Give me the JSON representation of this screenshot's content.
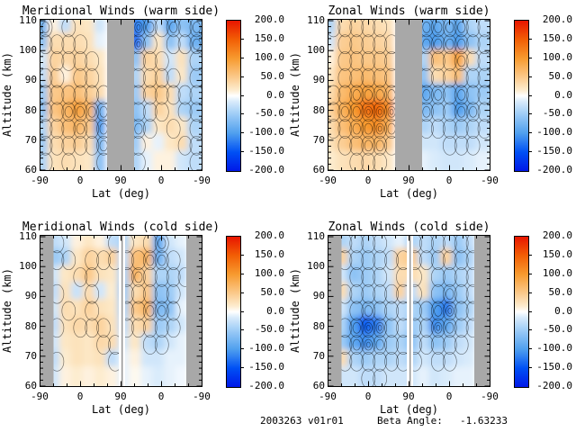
{
  "figure": {
    "footer": {
      "date_version": "2003263 v01r01",
      "beta_label": "Beta Angle:",
      "beta_value": "-1.63233"
    }
  },
  "colors": {
    "mask_gray": "#a8a8a8",
    "frame": "#000000",
    "background": "#ffffff"
  },
  "colorbar": {
    "tick_labels": [
      "200.0",
      "150.0",
      "100.0",
      "50.0",
      "0.0",
      "-50.0",
      "-100.0",
      "-150.0",
      "-200.0"
    ],
    "value_range": [
      -200,
      200
    ],
    "gradient_stops": [
      {
        "value": -200,
        "color": "#0018e8"
      },
      {
        "value": -150,
        "color": "#0050f4"
      },
      {
        "value": -100,
        "color": "#4f9fee"
      },
      {
        "value": -50,
        "color": "#9ccbf6"
      },
      {
        "value": -15,
        "color": "#d9ebfb"
      },
      {
        "value": 0,
        "color": "#ffffff"
      },
      {
        "value": 15,
        "color": "#fdeccf"
      },
      {
        "value": 50,
        "color": "#fbc98a"
      },
      {
        "value": 100,
        "color": "#f79a2e"
      },
      {
        "value": 150,
        "color": "#f25e05"
      },
      {
        "value": 200,
        "color": "#e81500"
      }
    ]
  },
  "chart_data": [
    {
      "type": "heatmap",
      "title": "Meridional Winds (warm side)",
      "xlabel": "Lat (deg)",
      "ylabel": "Altitude (km)",
      "x_tick_labels": [
        "-90",
        "0",
        "90",
        "0",
        "-90"
      ],
      "x_axis_note": "latitude along orbit track: ascending -90 to 90, then descending 90 to -90",
      "y_ticks": [
        60,
        70,
        80,
        90,
        100,
        110
      ],
      "ylim": [
        60,
        110
      ],
      "value_range": [
        -200,
        200
      ],
      "mask": "center",
      "row_altitudes_km": [
        107,
        102,
        96,
        91,
        85,
        79,
        74,
        68,
        63
      ],
      "grid": [
        [
          -80,
          10,
          -30,
          25,
          20,
          -20,
          0,
          0,
          -120,
          -100,
          -30,
          -90,
          -60,
          -70
        ],
        [
          -60,
          30,
          30,
          30,
          25,
          -10,
          0,
          0,
          -130,
          -60,
          20,
          -60,
          -30,
          -80
        ],
        [
          -20,
          40,
          35,
          40,
          30,
          20,
          0,
          0,
          -60,
          40,
          30,
          -20,
          25,
          -40
        ],
        [
          -30,
          45,
          10,
          50,
          40,
          25,
          0,
          0,
          -40,
          30,
          40,
          -30,
          20,
          -50
        ],
        [
          -50,
          50,
          55,
          60,
          45,
          30,
          0,
          0,
          -50,
          40,
          50,
          30,
          -30,
          -40
        ],
        [
          -60,
          55,
          70,
          90,
          70,
          -80,
          0,
          0,
          -60,
          -30,
          40,
          25,
          -40,
          -50
        ],
        [
          -40,
          40,
          60,
          70,
          50,
          -100,
          0,
          0,
          -70,
          -40,
          20,
          30,
          20,
          -40
        ],
        [
          -50,
          30,
          40,
          45,
          30,
          -70,
          0,
          0,
          -50,
          10,
          -10,
          20,
          30,
          -30
        ],
        [
          -40,
          25,
          30,
          25,
          20,
          -60,
          0,
          0,
          -40,
          -10,
          10,
          10,
          -20,
          -30
        ]
      ]
    },
    {
      "type": "heatmap",
      "title": "Zonal Winds (warm side)",
      "xlabel": "Lat (deg)",
      "ylabel": "Altitude (km)",
      "x_tick_labels": [
        "-90",
        "0",
        "90",
        "0",
        "-90"
      ],
      "x_axis_note": "latitude along orbit track: ascending -90 to 90, then descending 90 to -90",
      "y_ticks": [
        60,
        70,
        80,
        90,
        100,
        110
      ],
      "ylim": [
        60,
        110
      ],
      "value_range": [
        -200,
        200
      ],
      "mask": "center",
      "row_altitudes_km": [
        107,
        102,
        96,
        91,
        85,
        79,
        74,
        68,
        63
      ],
      "grid": [
        [
          -40,
          30,
          40,
          35,
          30,
          25,
          0,
          0,
          -80,
          -90,
          -70,
          -90,
          -40,
          -30
        ],
        [
          -20,
          45,
          50,
          45,
          40,
          35,
          0,
          0,
          -90,
          -100,
          -80,
          -100,
          -60,
          -40
        ],
        [
          10,
          50,
          55,
          50,
          50,
          45,
          0,
          0,
          -40,
          60,
          50,
          90,
          30,
          -30
        ],
        [
          20,
          55,
          60,
          65,
          60,
          55,
          0,
          0,
          -60,
          30,
          40,
          60,
          -40,
          -40
        ],
        [
          30,
          65,
          80,
          90,
          85,
          70,
          0,
          0,
          -90,
          -70,
          -60,
          -90,
          -60,
          -50
        ],
        [
          40,
          75,
          100,
          130,
          140,
          110,
          0,
          0,
          -70,
          -60,
          -50,
          -100,
          -70,
          -40
        ],
        [
          30,
          60,
          80,
          100,
          110,
          80,
          0,
          0,
          -40,
          -30,
          -40,
          -50,
          -40,
          -30
        ],
        [
          25,
          45,
          60,
          70,
          70,
          50,
          0,
          0,
          -20,
          -20,
          -30,
          -30,
          -30,
          -20
        ],
        [
          15,
          25,
          30,
          35,
          30,
          20,
          0,
          0,
          -10,
          -15,
          -20,
          -20,
          -15,
          -10
        ]
      ]
    },
    {
      "type": "heatmap",
      "title": "Meridional Winds (cold side)",
      "xlabel": "Lat (deg)",
      "ylabel": "Altitude (km)",
      "x_tick_labels": [
        "-90",
        "0",
        "90",
        "0",
        "-90"
      ],
      "x_axis_note": "latitude along orbit track: ascending -90 to 90, then descending 90 to -90",
      "y_ticks": [
        60,
        70,
        80,
        90,
        100,
        110
      ],
      "ylim": [
        60,
        110
      ],
      "value_range": [
        -200,
        200
      ],
      "mask": "edges",
      "row_altitudes_km": [
        107,
        102,
        96,
        91,
        85,
        79,
        74,
        68,
        63
      ],
      "grid": [
        [
          0,
          -30,
          -20,
          10,
          20,
          10,
          -30,
          -40,
          20,
          30,
          -90,
          -20,
          -10,
          0
        ],
        [
          0,
          -50,
          -40,
          20,
          40,
          30,
          40,
          -30,
          60,
          70,
          -80,
          -30,
          -20,
          0
        ],
        [
          0,
          -20,
          20,
          30,
          50,
          25,
          20,
          -40,
          70,
          40,
          -40,
          -40,
          -30,
          0
        ],
        [
          0,
          -30,
          25,
          -25,
          30,
          -20,
          15,
          -50,
          30,
          50,
          -60,
          -50,
          -20,
          0
        ],
        [
          0,
          -20,
          30,
          25,
          40,
          25,
          20,
          -40,
          50,
          70,
          -70,
          -60,
          -10,
          0
        ],
        [
          0,
          -30,
          25,
          35,
          30,
          40,
          25,
          -30,
          30,
          40,
          -50,
          -40,
          -20,
          0
        ],
        [
          0,
          -20,
          20,
          25,
          20,
          35,
          30,
          -20,
          20,
          -30,
          -40,
          -20,
          -10,
          0
        ],
        [
          0,
          -30,
          15,
          25,
          20,
          25,
          -30,
          -10,
          10,
          -20,
          -20,
          -10,
          -10,
          0
        ],
        [
          0,
          -20,
          10,
          15,
          10,
          15,
          10,
          -10,
          5,
          -10,
          -15,
          -10,
          -5,
          0
        ]
      ]
    },
    {
      "type": "heatmap",
      "title": "Zonal Winds (cold side)",
      "xlabel": "Lat (deg)",
      "ylabel": "Altitude (km)",
      "x_tick_labels": [
        "-90",
        "0",
        "90",
        "0",
        "-90"
      ],
      "x_axis_note": "latitude along orbit track: ascending -90 to 90, then descending 90 to -90",
      "y_ticks": [
        60,
        70,
        80,
        90,
        100,
        110
      ],
      "ylim": [
        60,
        110
      ],
      "value_range": [
        -200,
        200
      ],
      "mask": "edges",
      "row_altitudes_km": [
        107,
        102,
        96,
        91,
        85,
        79,
        74,
        68,
        63
      ],
      "grid": [
        [
          0,
          -40,
          -30,
          -40,
          -30,
          -20,
          -10,
          -40,
          -30,
          -40,
          -30,
          -50,
          -30,
          0
        ],
        [
          0,
          40,
          -40,
          -50,
          -40,
          -30,
          40,
          50,
          -30,
          -50,
          40,
          -60,
          -40,
          0
        ],
        [
          0,
          -20,
          -60,
          -50,
          -40,
          -20,
          30,
          30,
          20,
          -40,
          -50,
          -40,
          -30,
          0
        ],
        [
          0,
          30,
          -40,
          -50,
          -40,
          -30,
          40,
          -30,
          25,
          -60,
          -70,
          -50,
          -30,
          0
        ],
        [
          0,
          -20,
          -60,
          -70,
          -60,
          -40,
          -30,
          -40,
          -50,
          -100,
          -120,
          -60,
          -40,
          0
        ],
        [
          0,
          -40,
          -100,
          -140,
          -120,
          -60,
          -30,
          -50,
          -40,
          -110,
          -90,
          -50,
          -30,
          0
        ],
        [
          0,
          -50,
          -90,
          -110,
          -90,
          -50,
          -40,
          -60,
          -30,
          -60,
          -50,
          -30,
          -20,
          0
        ],
        [
          0,
          30,
          -40,
          -50,
          -40,
          -40,
          -30,
          -40,
          -20,
          -30,
          -30,
          -20,
          -15,
          0
        ],
        [
          0,
          -20,
          -20,
          -30,
          -30,
          -20,
          -20,
          -20,
          -10,
          -20,
          -15,
          -10,
          -10,
          0
        ]
      ]
    }
  ]
}
